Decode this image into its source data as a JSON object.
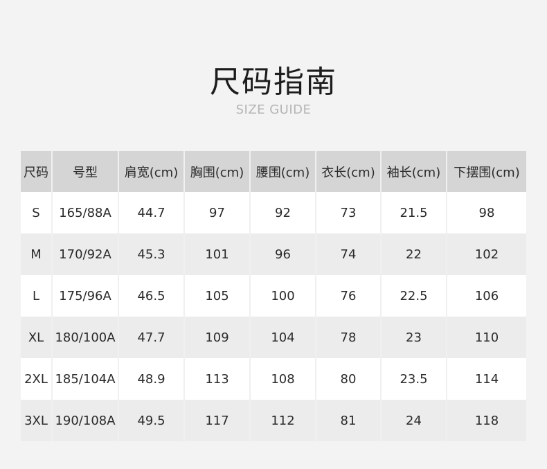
{
  "title": "尺码指南",
  "subtitle": "SIZE GUIDE",
  "colors": {
    "background": "#f3f3f3",
    "header": "#d5d5d5",
    "row_alt": "#ececec",
    "row": "#ffffff"
  },
  "table": {
    "headers": [
      "尺码",
      "号型",
      "肩宽(cm)",
      "胸围(cm)",
      "腰围(cm)",
      "衣长(cm)",
      "袖长(cm)",
      "下摆围(cm)"
    ],
    "rows": [
      [
        "S",
        "165/88A",
        "44.7",
        "97",
        "92",
        "73",
        "21.5",
        "98"
      ],
      [
        "M",
        "170/92A",
        "45.3",
        "101",
        "96",
        "74",
        "22",
        "102"
      ],
      [
        "L",
        "175/96A",
        "46.5",
        "105",
        "100",
        "76",
        "22.5",
        "106"
      ],
      [
        "XL",
        "180/100A",
        "47.7",
        "109",
        "104",
        "78",
        "23",
        "110"
      ],
      [
        "2XL",
        "185/104A",
        "48.9",
        "113",
        "108",
        "80",
        "23.5",
        "114"
      ],
      [
        "3XL",
        "190/108A",
        "49.5",
        "117",
        "112",
        "81",
        "24",
        "118"
      ]
    ]
  }
}
